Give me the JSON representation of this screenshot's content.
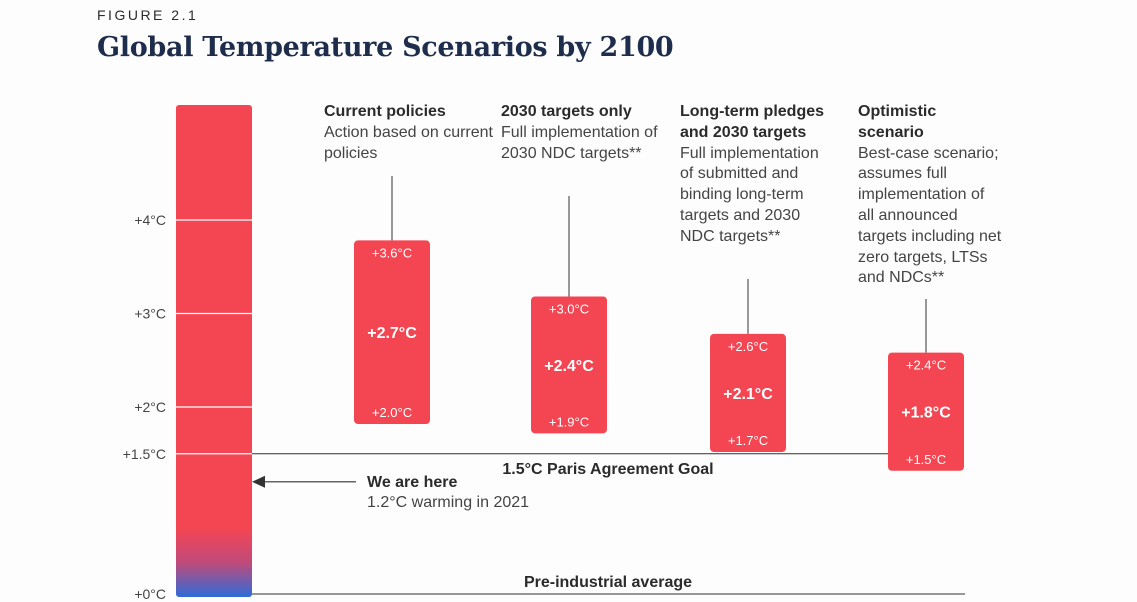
{
  "figure_label": "FIGURE 2.1",
  "title": "Global Temperature Scenarios by 2100",
  "colors": {
    "bar": "#f44552",
    "thermo_bottom": "#2f6bd9",
    "title": "#1f2d4d",
    "line": "#333333"
  },
  "chart_data": {
    "type": "bar",
    "title": "Global Temperature Scenarios by 2100",
    "y_unit": "°C",
    "ylim": [
      0,
      4.5
    ],
    "y_ticks": [
      {
        "value": 4,
        "label": "+4°C"
      },
      {
        "value": 3,
        "label": "+3°C"
      },
      {
        "value": 2,
        "label": "+2°C"
      },
      {
        "value": 1.5,
        "label": "+1.5°C"
      },
      {
        "value": 0,
        "label": "+0°C"
      }
    ],
    "scenarios": [
      {
        "name": "Current policies",
        "description": "Action based on current policies",
        "low": 2.0,
        "mid": 2.7,
        "high": 3.6,
        "low_label": "+2.0°C",
        "mid_label": "+2.7°C",
        "high_label": "+3.6°C"
      },
      {
        "name": "2030 targets only",
        "description": "Full implementation of 2030 NDC targets**",
        "low": 1.9,
        "mid": 2.4,
        "high": 3.0,
        "low_label": "+1.9°C",
        "mid_label": "+2.4°C",
        "high_label": "+3.0°C"
      },
      {
        "name": "Long-term pledges and 2030 targets",
        "description": "Full implementation of submitted and binding long-term targets and 2030 NDC targets**",
        "low": 1.7,
        "mid": 2.1,
        "high": 2.6,
        "low_label": "+1.7°C",
        "mid_label": "+2.1°C",
        "high_label": "+2.6°C"
      },
      {
        "name": "Optimistic scenario",
        "description": "Best-case scenario; assumes full implementation of all announced targets including net zero targets, LTSs and NDCs**",
        "low": 1.5,
        "mid": 1.8,
        "high": 2.4,
        "low_label": "+1.5°C",
        "mid_label": "+1.8°C",
        "high_label": "+2.4°C"
      }
    ],
    "reference_lines": [
      {
        "value": 1.5,
        "label": "1.5°C Paris Agreement Goal"
      },
      {
        "value": 0,
        "label": "Pre-industrial average"
      }
    ],
    "current": {
      "value": 1.2,
      "label": "We are here",
      "sublabel": "1.2°C warming in 2021"
    }
  }
}
